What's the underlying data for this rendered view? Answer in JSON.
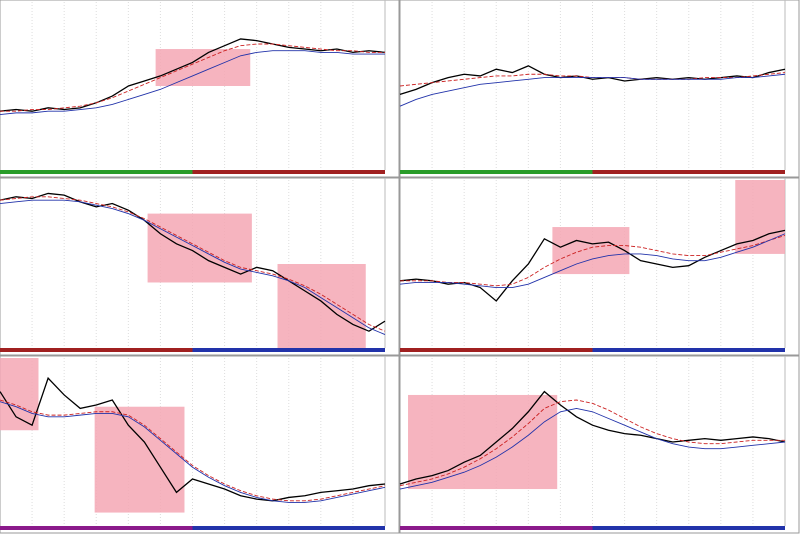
{
  "chart_data": [
    {
      "type": "line",
      "xlim": [
        0,
        24
      ],
      "ylim": [
        0,
        100
      ],
      "highlight_color": "#f4a7b4",
      "series": [
        {
          "color": "#000000",
          "values": [
            35,
            36,
            35,
            37,
            36,
            37,
            40,
            44,
            50,
            53,
            56,
            60,
            64,
            70,
            74,
            78,
            77,
            75,
            73,
            72,
            71,
            72,
            70,
            71,
            70
          ]
        },
        {
          "color": "#cc2222",
          "values": [
            35,
            35,
            36,
            36,
            37,
            38,
            40,
            43,
            47,
            51,
            55,
            59,
            63,
            67,
            71,
            74,
            75,
            75,
            74,
            73,
            72,
            71,
            71,
            70,
            70
          ]
        },
        {
          "color": "#2233aa",
          "values": [
            33,
            34,
            34,
            35,
            35,
            36,
            37,
            39,
            42,
            45,
            48,
            52,
            56,
            60,
            64,
            68,
            70,
            71,
            71,
            71,
            70,
            70,
            69,
            69,
            69
          ]
        }
      ],
      "highlights": [
        {
          "x": [
            9.7,
            15.6
          ],
          "y": [
            50,
            72
          ]
        }
      ]
    },
    {
      "type": "line",
      "xlim": [
        0,
        24
      ],
      "ylim": [
        0,
        100
      ],
      "highlight_color": "#f4a7b4",
      "series": [
        {
          "color": "#000000",
          "values": [
            45,
            48,
            52,
            55,
            57,
            56,
            60,
            58,
            62,
            57,
            55,
            56,
            54,
            55,
            53,
            54,
            55,
            54,
            55,
            54,
            55,
            56,
            55,
            58,
            60
          ]
        },
        {
          "color": "#cc2222",
          "values": [
            50,
            51,
            52,
            53,
            54,
            55,
            56,
            56,
            57,
            57,
            56,
            56,
            55,
            55,
            55,
            54,
            54,
            54,
            54,
            55,
            55,
            55,
            56,
            57,
            58
          ]
        },
        {
          "color": "#2233aa",
          "values": [
            38,
            42,
            45,
            47,
            49,
            51,
            52,
            53,
            54,
            55,
            55,
            55,
            55,
            55,
            55,
            54,
            54,
            54,
            54,
            54,
            54,
            55,
            55,
            56,
            57
          ]
        }
      ],
      "highlights": []
    },
    {
      "type": "line",
      "xlim": [
        0,
        24
      ],
      "ylim": [
        0,
        100
      ],
      "highlight_color": "#f4a7b4",
      "series": [
        {
          "color": "#000000",
          "values": [
            88,
            90,
            89,
            92,
            91,
            87,
            84,
            86,
            82,
            76,
            68,
            62,
            58,
            52,
            48,
            44,
            48,
            46,
            40,
            34,
            28,
            20,
            14,
            10,
            16
          ]
        },
        {
          "color": "#cc2222",
          "values": [
            88,
            89,
            90,
            90,
            89,
            88,
            86,
            84,
            81,
            77,
            72,
            67,
            62,
            57,
            52,
            48,
            46,
            44,
            41,
            37,
            32,
            26,
            20,
            14,
            10
          ]
        },
        {
          "color": "#2233aa",
          "values": [
            86,
            87,
            88,
            88,
            88,
            87,
            85,
            83,
            80,
            76,
            71,
            66,
            61,
            56,
            51,
            47,
            45,
            43,
            40,
            36,
            30,
            24,
            18,
            12,
            8
          ]
        }
      ],
      "highlights": [
        {
          "x": [
            9.2,
            15.7
          ],
          "y": [
            39,
            80
          ]
        },
        {
          "x": [
            17.3,
            22.8
          ],
          "y": [
            0,
            50
          ]
        }
      ]
    },
    {
      "type": "line",
      "xlim": [
        0,
        24
      ],
      "ylim": [
        0,
        100
      ],
      "highlight_color": "#f4a7b4",
      "series": [
        {
          "color": "#000000",
          "values": [
            40,
            41,
            40,
            38,
            39,
            36,
            28,
            40,
            50,
            65,
            60,
            64,
            62,
            63,
            58,
            52,
            50,
            48,
            49,
            54,
            58,
            62,
            64,
            68,
            70
          ]
        },
        {
          "color": "#cc2222",
          "values": [
            40,
            40,
            40,
            39,
            39,
            38,
            37,
            38,
            42,
            48,
            53,
            57,
            60,
            61,
            61,
            60,
            58,
            56,
            55,
            55,
            57,
            59,
            61,
            64,
            67
          ]
        },
        {
          "color": "#2233aa",
          "values": [
            38,
            39,
            39,
            39,
            38,
            37,
            36,
            36,
            38,
            42,
            46,
            50,
            53,
            55,
            56,
            56,
            55,
            53,
            52,
            52,
            54,
            57,
            60,
            64,
            68
          ]
        }
      ],
      "highlights": [
        {
          "x": [
            9.5,
            14.3
          ],
          "y": [
            44,
            72
          ]
        },
        {
          "x": [
            20.9,
            24
          ],
          "y": [
            56,
            100
          ]
        }
      ]
    },
    {
      "type": "line",
      "xlim": [
        0,
        24
      ],
      "ylim": [
        0,
        100
      ],
      "highlight_color": "#f4a7b4",
      "series": [
        {
          "color": "#000000",
          "values": [
            80,
            65,
            60,
            88,
            78,
            70,
            72,
            75,
            60,
            50,
            35,
            20,
            28,
            25,
            22,
            18,
            16,
            15,
            17,
            18,
            20,
            21,
            22,
            24,
            25
          ]
        },
        {
          "color": "#cc2222",
          "values": [
            75,
            72,
            68,
            66,
            66,
            67,
            68,
            68,
            66,
            60,
            52,
            44,
            36,
            30,
            25,
            21,
            18,
            16,
            15,
            15,
            16,
            18,
            20,
            22,
            24
          ]
        },
        {
          "color": "#2233aa",
          "values": [
            74,
            71,
            67,
            65,
            65,
            66,
            67,
            67,
            65,
            59,
            51,
            43,
            35,
            29,
            24,
            20,
            17,
            15,
            14,
            14,
            15,
            17,
            19,
            21,
            23
          ]
        }
      ],
      "highlights": [
        {
          "x": [
            0,
            2.4
          ],
          "y": [
            57,
            100
          ]
        },
        {
          "x": [
            5.9,
            11.5
          ],
          "y": [
            8,
            71
          ]
        }
      ]
    },
    {
      "type": "line",
      "xlim": [
        0,
        24
      ],
      "ylim": [
        0,
        100
      ],
      "highlight_color": "#f4a7b4",
      "series": [
        {
          "color": "#000000",
          "values": [
            25,
            28,
            30,
            33,
            38,
            42,
            50,
            58,
            68,
            80,
            72,
            65,
            60,
            57,
            55,
            54,
            52,
            50,
            51,
            52,
            51,
            52,
            53,
            52,
            50
          ]
        },
        {
          "color": "#cc2222",
          "values": [
            24,
            26,
            28,
            31,
            35,
            40,
            46,
            53,
            61,
            70,
            74,
            75,
            73,
            69,
            64,
            59,
            55,
            52,
            50,
            49,
            49,
            50,
            51,
            51,
            51
          ]
        },
        {
          "color": "#2233aa",
          "values": [
            22,
            24,
            26,
            29,
            32,
            36,
            41,
            47,
            54,
            62,
            68,
            70,
            68,
            64,
            60,
            56,
            52,
            49,
            47,
            46,
            46,
            47,
            48,
            49,
            50
          ]
        }
      ],
      "highlights": [
        {
          "x": [
            0.5,
            9.8
          ],
          "y": [
            22,
            78
          ]
        }
      ]
    }
  ]
}
